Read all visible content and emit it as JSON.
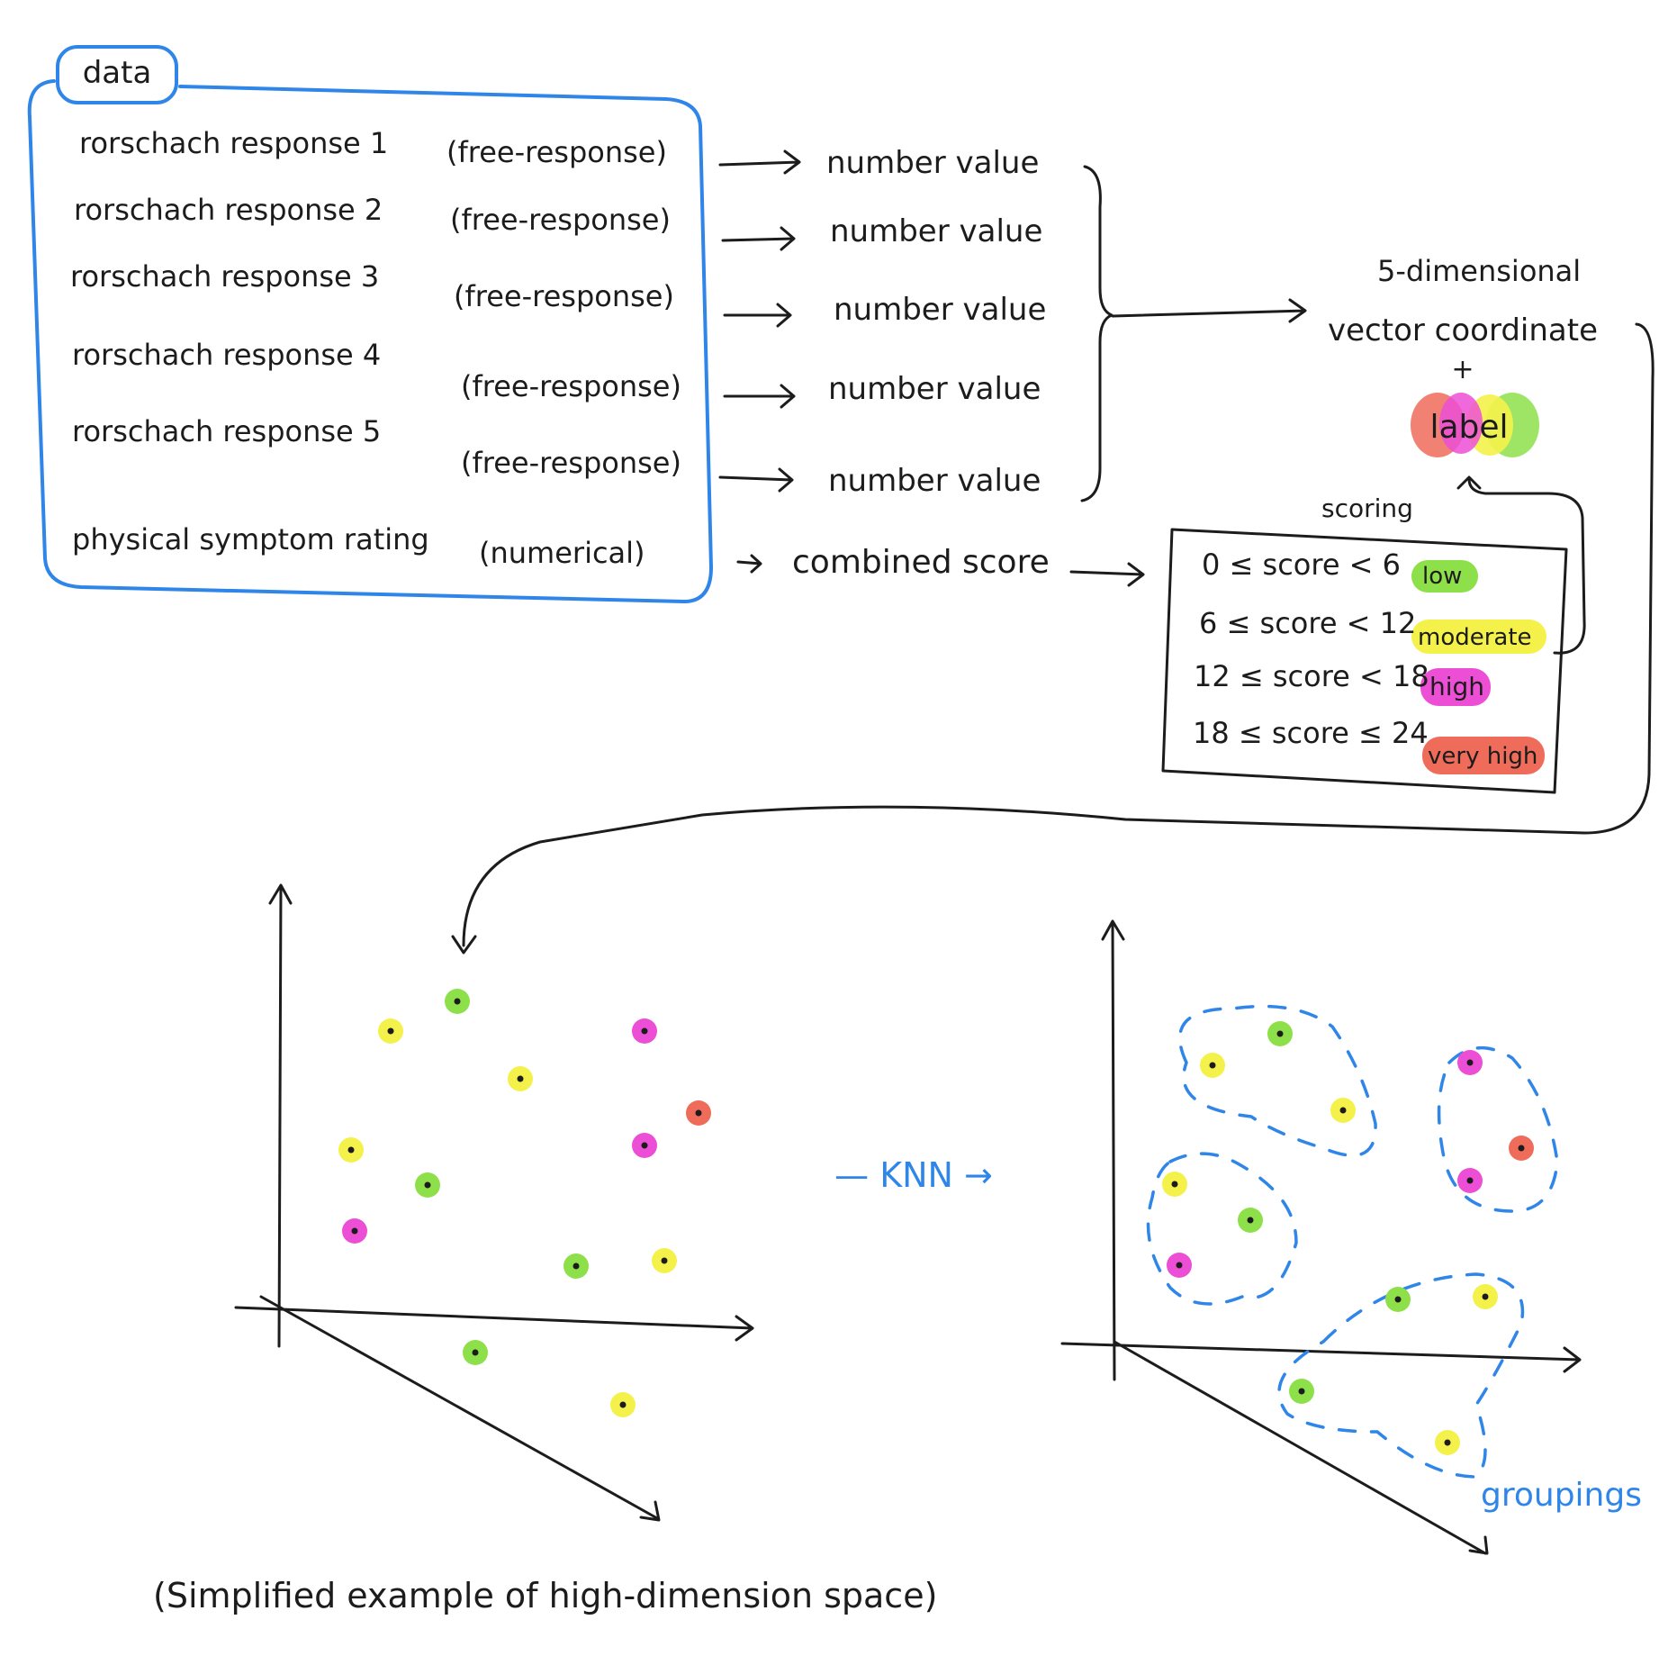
{
  "data_box": {
    "title": "data",
    "rows": [
      {
        "label": "rorschach response 1",
        "type": "(free-response)",
        "output": "number value"
      },
      {
        "label": "rorschach response 2",
        "type": "(free-response)",
        "output": "number value"
      },
      {
        "label": "rorschach response 3",
        "type": "(free-response)",
        "output": "number value"
      },
      {
        "label": "rorschach response 4",
        "type": "(free-response)",
        "output": "number value"
      },
      {
        "label": "rorschach response 5",
        "type": "(free-response)",
        "output": "number value"
      }
    ],
    "symptom_row": {
      "label": "physical symptom rating",
      "type": "(numerical)",
      "output": "combined score"
    }
  },
  "vector": {
    "line1": "5-dimensional",
    "line2": "vector coordinate",
    "plus": "+",
    "label": "label"
  },
  "scoring": {
    "title": "scoring",
    "rows": [
      {
        "range": "0 ≤ score < 6",
        "level": "low",
        "color": "#8ee04a"
      },
      {
        "range": "6 ≤ score < 12",
        "level": "moderate",
        "color": "#f4f24a"
      },
      {
        "range": "12 ≤ score < 18",
        "level": "high",
        "color": "#ec4fd6"
      },
      {
        "range": "18 ≤ score ≤ 24",
        "level": "very high",
        "color": "#ef6c5a"
      }
    ]
  },
  "knn_label": "— KNN →",
  "groupings_label": "groupings",
  "caption": "(Simplified example of high-dimension space)",
  "colors": {
    "low": "#8ee04a",
    "moderate": "#f4f24a",
    "high": "#ec4fd6",
    "very_high": "#ef6c5a",
    "accent_blue": "#2f86e8"
  }
}
